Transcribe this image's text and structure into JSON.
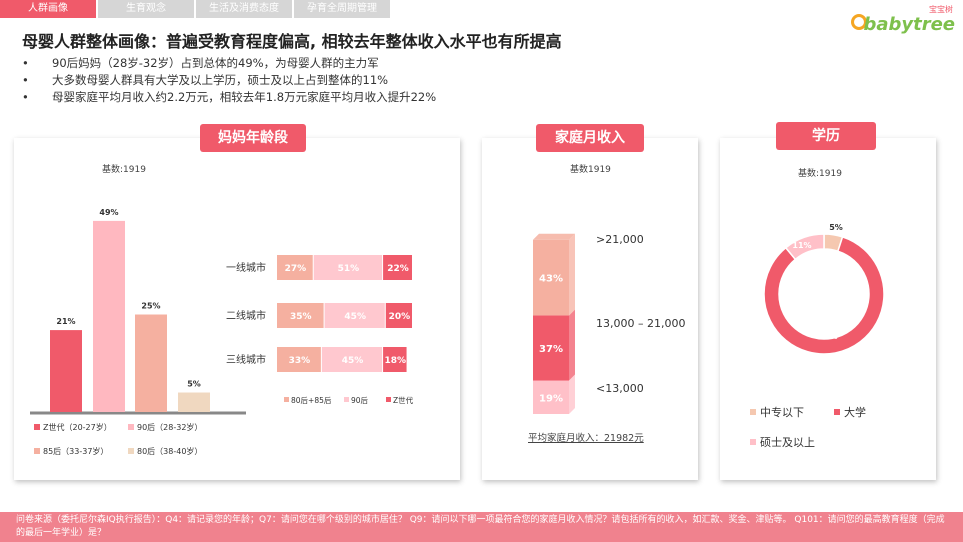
{
  "tabs": [
    {
      "label": "人群画像",
      "active": true
    },
    {
      "label": "生育观念",
      "active": false
    },
    {
      "label": "生活及消费态度",
      "active": false
    },
    {
      "label": "孕育全周期管理",
      "active": false
    }
  ],
  "logo": {
    "cn": "宝宝树",
    "en": "babytree"
  },
  "title": "母婴人群整体画像：普遍受教育程度偏高, 相较去年整体收入水平也有所提高",
  "bullets": [
    "90后妈妈（28岁-32岁）占到总体的49%，为母婴人群的主力军",
    "大多数母婴人群具有大学及以上学历，硕士及以上占到整体的11%",
    "母婴家庭平均月收入约2.2万元，相较去年1.8万元家庭平均月收入提升22%"
  ],
  "panels": {
    "age": {
      "title": "妈妈年龄段",
      "base": "基数:1919"
    },
    "income": {
      "title": "家庭月收入",
      "base": "基数1919",
      "avg": "平均家庭月收入：21982元"
    },
    "edu": {
      "title": "学历",
      "base": "基数:1919"
    }
  },
  "footer": "问卷来源（委托尼尔森IQ执行报告）：Q4：请记录您的年龄；Q7：请问您在哪个级别的城市居住？ Q9：请问以下哪一项最符合您的家庭月收入情况？请包括所有的收入，如汇款、奖金、津贴等。 Q101：请问您的最高教育程度（完成的最后一年学业）是？",
  "chart_data": [
    {
      "type": "bar",
      "categories": [
        "Z世代（20-27岁）",
        "90后（28-32岁）",
        "85后（33-37岁）",
        "80后（38-40岁）"
      ],
      "values": [
        21,
        49,
        25,
        5
      ],
      "labels": [
        "21%",
        "49%",
        "25%",
        "5%"
      ],
      "colors": [
        "#f05a6a",
        "#ffb8c0",
        "#f5b0a0",
        "#f0d8c0"
      ],
      "legend": [
        "Z世代（20-27岁）",
        "90后（28-32岁）",
        "85后（33-37岁）",
        "80后（38-40岁）"
      ]
    },
    {
      "type": "bar",
      "orientation": "horizontal-stacked",
      "categories": [
        "一线城市",
        "二线城市",
        "三线城市"
      ],
      "series": [
        {
          "name": "80后+85后",
          "values": [
            27,
            35,
            33
          ],
          "labels": [
            "27%",
            "35%",
            "33%"
          ],
          "color": "#f5b0a0"
        },
        {
          "name": "90后",
          "values": [
            51,
            45,
            45
          ],
          "labels": [
            "51%",
            "45%",
            "45%"
          ],
          "color": "#ffc8cf"
        },
        {
          "name": "Z世代",
          "values": [
            22,
            20,
            18
          ],
          "labels": [
            "22%",
            "20%",
            "18%"
          ],
          "color": "#f05a6a"
        }
      ]
    },
    {
      "type": "bar",
      "orientation": "vertical-stacked",
      "categories": [
        "<13,000",
        "13,000 – 21,000",
        ">21,000"
      ],
      "values": [
        19,
        37,
        43
      ],
      "labels": [
        "19%",
        "37%",
        "43%"
      ],
      "colors": [
        "#ffc0c8",
        "#f05a6a",
        "#f5b0a0"
      ]
    },
    {
      "type": "pie",
      "donut": true,
      "categories": [
        "中专以下",
        "大学",
        "硕士及以上"
      ],
      "values": [
        5,
        84,
        11
      ],
      "labels": [
        "5%",
        "84%",
        "11%"
      ],
      "colors": [
        "#f5c8b0",
        "#f05a6a",
        "#ffc0c8"
      ]
    }
  ]
}
